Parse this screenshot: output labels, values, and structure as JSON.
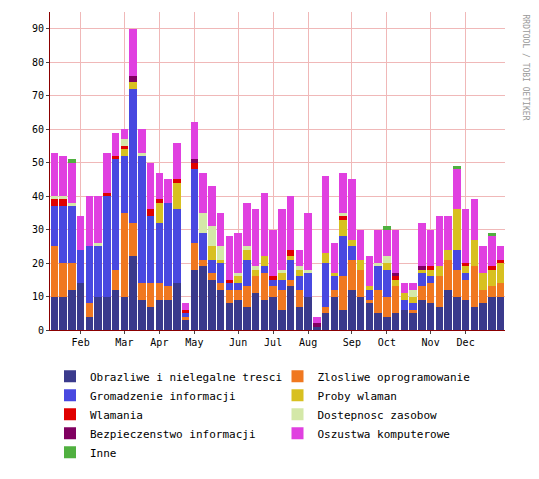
{
  "chart_data": {
    "type": "bar",
    "stacked": true,
    "grid": true,
    "legend": "bottom",
    "watermark": "RRDTOOL / TOBI OETIKER",
    "categories": [
      null,
      null,
      null,
      "Feb",
      null,
      null,
      null,
      null,
      "Mar",
      null,
      null,
      null,
      "Apr",
      null,
      null,
      null,
      "May",
      null,
      null,
      null,
      null,
      "Jun",
      null,
      null,
      null,
      "Jul",
      null,
      null,
      null,
      "Aug",
      null,
      null,
      null,
      null,
      "Sep",
      null,
      null,
      null,
      "Oct",
      null,
      null,
      null,
      null,
      "Nov",
      null,
      null,
      null,
      "Dec",
      null,
      null,
      null,
      null
    ],
    "ylim": [
      0,
      95
    ],
    "yticks": [
      0,
      10,
      20,
      30,
      40,
      50,
      60,
      70,
      80,
      90
    ],
    "series": [
      {
        "name": "Obrazliwe i nielegalne tresci",
        "color": "#3a3a8c",
        "values": [
          10,
          10,
          12,
          14,
          4,
          10,
          10,
          12,
          10,
          22,
          9,
          7,
          9,
          9,
          14,
          3,
          18,
          19,
          15,
          12,
          8,
          9,
          7,
          11,
          9,
          10,
          6,
          13,
          7,
          10,
          1,
          5,
          10,
          6,
          12,
          10,
          8,
          5,
          4,
          5,
          6,
          5,
          9,
          8,
          7,
          12,
          10,
          9,
          7,
          8,
          10,
          10
        ]
      },
      {
        "name": "Zlosliwe oprogramowanie",
        "color": "#f07820",
        "values": [
          15,
          10,
          8,
          0,
          4,
          0,
          0,
          6,
          25,
          10,
          5,
          7,
          5,
          4,
          0,
          1,
          8,
          2,
          2,
          2,
          4,
          3,
          6,
          5,
          8,
          3,
          6,
          2,
          5,
          0,
          0,
          2,
          2,
          10,
          9,
          8,
          1,
          7,
          6,
          8,
          0,
          1,
          4,
          6,
          9,
          9,
          8,
          6,
          12,
          4,
          3,
          4
        ]
      },
      {
        "name": "Gromadzenie informacji",
        "color": "#4848e0",
        "values": [
          12,
          17,
          17,
          10,
          17,
          15,
          30,
          33,
          17,
          40,
          38,
          20,
          18,
          25,
          22,
          1,
          22,
          8,
          4,
          6,
          2,
          2,
          8,
          0,
          2,
          2,
          3,
          6,
          4,
          7,
          0,
          13,
          4,
          12,
          4,
          0,
          3,
          7,
          8,
          0,
          3,
          2,
          4,
          2,
          0,
          0,
          6,
          2,
          0,
          0,
          0,
          0
        ]
      },
      {
        "name": "Proby wlaman",
        "color": "#d8c020",
        "values": [
          0,
          0,
          0,
          0,
          0,
          0,
          0,
          0,
          2,
          2,
          0,
          0,
          6,
          0,
          8,
          0,
          0,
          0,
          4,
          1,
          0,
          2,
          3,
          2,
          3,
          0,
          2,
          1,
          2,
          0,
          0,
          3,
          1,
          5,
          2,
          3,
          1,
          0,
          2,
          2,
          2,
          2,
          1,
          2,
          3,
          3,
          12,
          2,
          8,
          5,
          5,
          6
        ]
      },
      {
        "name": "Wlamania",
        "color": "#e00000",
        "values": [
          2,
          2,
          0,
          0,
          0,
          0,
          1,
          1,
          1,
          0,
          0,
          2,
          1,
          0,
          1,
          1,
          2,
          0,
          0,
          0,
          1,
          0,
          0,
          0,
          0,
          1,
          0,
          2,
          0,
          0,
          0,
          0,
          0,
          1,
          0,
          0,
          0,
          0,
          0,
          1,
          0,
          0,
          0,
          1,
          0,
          0,
          0,
          1,
          0,
          0,
          1,
          1
        ]
      },
      {
        "name": "Dostepnosc zasobow",
        "color": "#d4e8a8",
        "values": [
          1,
          1,
          1,
          0,
          0,
          1,
          0,
          0,
          2,
          0,
          1,
          0,
          0,
          0,
          0,
          0,
          0,
          6,
          6,
          4,
          0,
          1,
          1,
          1,
          0,
          0,
          1,
          0,
          1,
          1,
          0,
          0,
          0,
          1,
          0,
          0,
          0,
          1,
          2,
          0,
          0,
          2,
          0,
          0,
          0,
          0,
          0,
          0,
          0,
          0,
          0,
          0
        ]
      },
      {
        "name": "Bezpieczenstwo informacji",
        "color": "#800060",
        "values": [
          0,
          0,
          0,
          0,
          0,
          0,
          0,
          0,
          0,
          2,
          0,
          0,
          0,
          0,
          0,
          0,
          1,
          0,
          0,
          0,
          0,
          0,
          0,
          0,
          0,
          0,
          0,
          0,
          0,
          0,
          1,
          0,
          0,
          0,
          0,
          0,
          0,
          0,
          0,
          1,
          0,
          0,
          1,
          0,
          0,
          0,
          0,
          0,
          0,
          0,
          0,
          0
        ]
      },
      {
        "name": "Oszustwa komputerowe",
        "color": "#e040e0",
        "values": [
          13,
          12,
          12,
          10,
          15,
          14,
          12,
          7,
          3,
          14,
          7,
          14,
          8,
          7,
          11,
          2,
          11,
          12,
          12,
          10,
          13,
          12,
          13,
          17,
          19,
          14,
          18,
          16,
          5,
          17,
          2,
          23,
          9,
          12,
          18,
          9,
          9,
          10,
          8,
          13,
          3,
          2,
          13,
          11,
          15,
          10,
          12,
          16,
          12,
          8,
          9,
          4
        ]
      },
      {
        "name": "Inne",
        "color": "#50b040",
        "values": [
          0,
          0,
          1,
          0,
          0,
          0,
          0,
          0,
          0,
          0,
          0,
          0,
          0,
          0,
          0,
          0,
          0,
          0,
          0,
          0,
          0,
          0,
          0,
          0,
          0,
          0,
          0,
          0,
          0,
          0,
          0,
          0,
          0,
          0,
          0,
          0,
          0,
          0,
          1,
          0,
          0,
          0,
          0,
          0,
          0,
          0,
          1,
          0,
          0,
          0,
          1,
          0
        ]
      }
    ]
  }
}
